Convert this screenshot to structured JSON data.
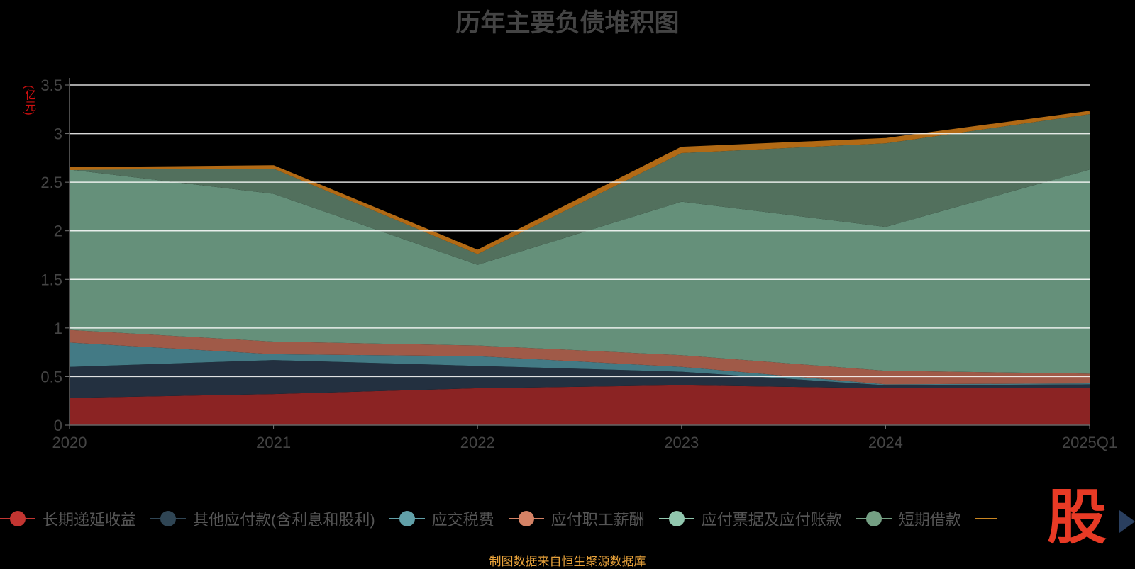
{
  "title": "历年主要负债堆积图",
  "unit": "(亿元)",
  "source": "制图数据来自恒生聚源数据库",
  "logo_text": "股",
  "legend_labels": [
    "长期递延收益",
    "其他应付款(含利息和股利)",
    "应交税费",
    "应付职工薪酬",
    "应付票据及应付账款",
    "短期借款"
  ],
  "chart_data": {
    "type": "area",
    "stacked": true,
    "title": "历年主要负债堆积图",
    "ylabel": "(亿元)",
    "ylim": [
      0,
      3.5
    ],
    "yticks": [
      "0",
      "0.5",
      "1",
      "1.5",
      "2",
      "2.5",
      "3",
      "3.5"
    ],
    "categories": [
      "2020",
      "2021",
      "2022",
      "2023",
      "2024",
      "2025Q1"
    ],
    "series": [
      {
        "name": "长期递延收益",
        "values": [
          0.28,
          0.32,
          0.38,
          0.41,
          0.38,
          0.38
        ],
        "color": "#8b2323",
        "legend_color": "#c23531"
      },
      {
        "name": "其他应付款(含利息和股利)",
        "values": [
          0.32,
          0.35,
          0.23,
          0.14,
          0.03,
          0.04
        ],
        "color": "#233040",
        "legend_color": "#2f4554"
      },
      {
        "name": "应交税费",
        "values": [
          0.25,
          0.06,
          0.1,
          0.05,
          0.01,
          0.01
        ],
        "color": "#437a85",
        "legend_color": "#61a0a8"
      },
      {
        "name": "应付职工薪酬",
        "values": [
          0.13,
          0.13,
          0.11,
          0.12,
          0.14,
          0.1
        ],
        "color": "#a05a48",
        "legend_color": "#d48265"
      },
      {
        "name": "应付票据及应付账款",
        "values": [
          1.65,
          1.52,
          0.83,
          1.58,
          1.48,
          2.1
        ],
        "color": "#65907a",
        "legend_color": "#91c7ae"
      },
      {
        "name": "短期借款",
        "values": [
          0.0,
          0.26,
          0.11,
          0.5,
          0.86,
          0.57
        ],
        "color": "#52705d",
        "legend_color": "#749f83"
      },
      {
        "name": "",
        "values": [
          0.01,
          0.02,
          0.03,
          0.05,
          0.04,
          0.02
        ],
        "color": "#b26a15",
        "legend_color": "#ca8622"
      }
    ],
    "grid": true
  }
}
